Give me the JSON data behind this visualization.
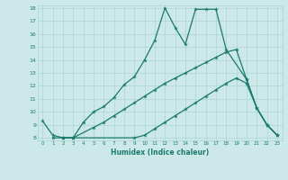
{
  "xlabel": "Humidex (Indice chaleur)",
  "bg_color": "#cce8e8",
  "grid_color": "#aad4d4",
  "line_color": "#1a7a6e",
  "xlim": [
    -0.5,
    23.5
  ],
  "ylim": [
    7.8,
    18.2
  ],
  "xticks": [
    0,
    1,
    2,
    3,
    4,
    5,
    6,
    7,
    8,
    9,
    10,
    11,
    12,
    13,
    14,
    15,
    16,
    17,
    18,
    19,
    20,
    21,
    22,
    23
  ],
  "yticks": [
    8,
    9,
    10,
    11,
    12,
    13,
    14,
    15,
    16,
    17,
    18
  ],
  "line1_x": [
    0,
    1,
    2,
    3,
    4,
    5,
    6,
    7,
    8,
    9,
    10,
    11,
    12,
    13,
    14,
    15,
    16,
    17,
    18,
    20,
    21,
    22,
    23
  ],
  "line1_y": [
    9.3,
    8.2,
    8.0,
    8.0,
    9.2,
    10.0,
    10.4,
    11.1,
    12.1,
    12.7,
    14.0,
    15.5,
    18.0,
    16.5,
    15.2,
    17.9,
    17.9,
    17.9,
    14.8,
    12.5,
    10.3,
    9.0,
    8.2
  ],
  "line2_x": [
    2,
    3,
    5,
    6,
    7,
    8,
    9,
    10,
    11,
    12,
    13,
    14,
    15,
    16,
    17,
    18,
    19,
    20,
    21,
    22,
    23
  ],
  "line2_y": [
    8.0,
    8.0,
    8.8,
    9.2,
    9.7,
    10.2,
    10.7,
    11.2,
    11.7,
    12.2,
    12.6,
    13.0,
    13.4,
    13.8,
    14.2,
    14.6,
    14.8,
    12.5,
    10.3,
    9.0,
    8.2
  ],
  "line3_x": [
    1,
    2,
    3,
    9,
    10,
    11,
    12,
    13,
    14,
    15,
    16,
    17,
    18,
    19,
    20,
    21,
    22,
    23
  ],
  "line3_y": [
    8.0,
    8.0,
    8.0,
    8.0,
    8.2,
    8.7,
    9.2,
    9.7,
    10.2,
    10.7,
    11.2,
    11.7,
    12.2,
    12.6,
    12.2,
    10.3,
    9.0,
    8.2
  ]
}
